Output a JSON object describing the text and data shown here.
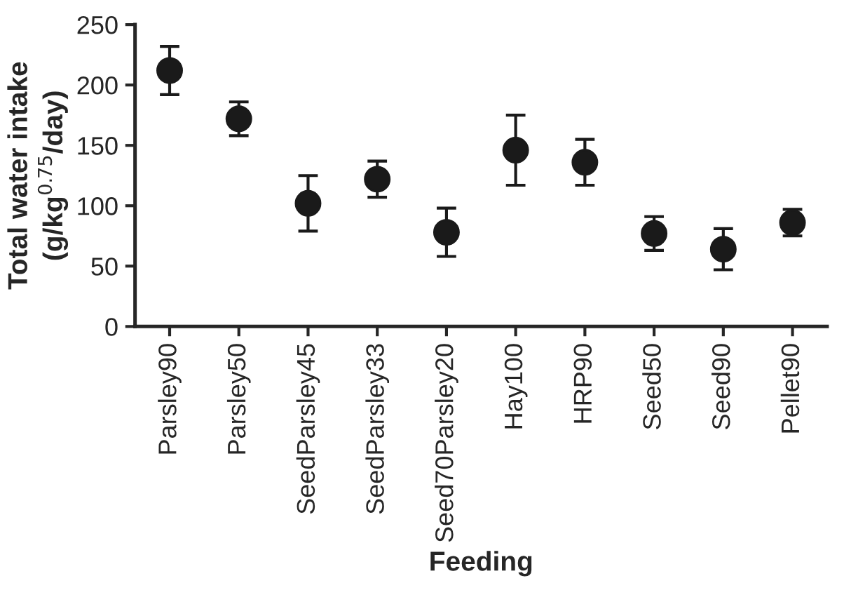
{
  "chart_data": {
    "type": "scatter",
    "xlabel": "Feeding",
    "ylabel": "Total water intake\n(g/kg$^{0.75}$/day)",
    "categories": [
      "Parsley90",
      "Parsley50",
      "SeedParsley45",
      "SeedParsley33",
      "Seed70Parsley20",
      "Hay100",
      "HRP90",
      "Seed50",
      "Seed90",
      "Pellet90"
    ],
    "values": [
      212,
      172,
      102,
      122,
      78,
      146,
      136,
      77,
      64,
      86
    ],
    "errors": [
      20,
      14,
      23,
      15,
      20,
      29,
      19,
      14,
      17,
      11
    ],
    "color": "#1a1a1a",
    "marker": "circle",
    "ylim": [
      0,
      250
    ],
    "yticks": [
      0,
      50,
      100,
      150,
      200,
      250
    ],
    "grid": false,
    "legend": false
  }
}
